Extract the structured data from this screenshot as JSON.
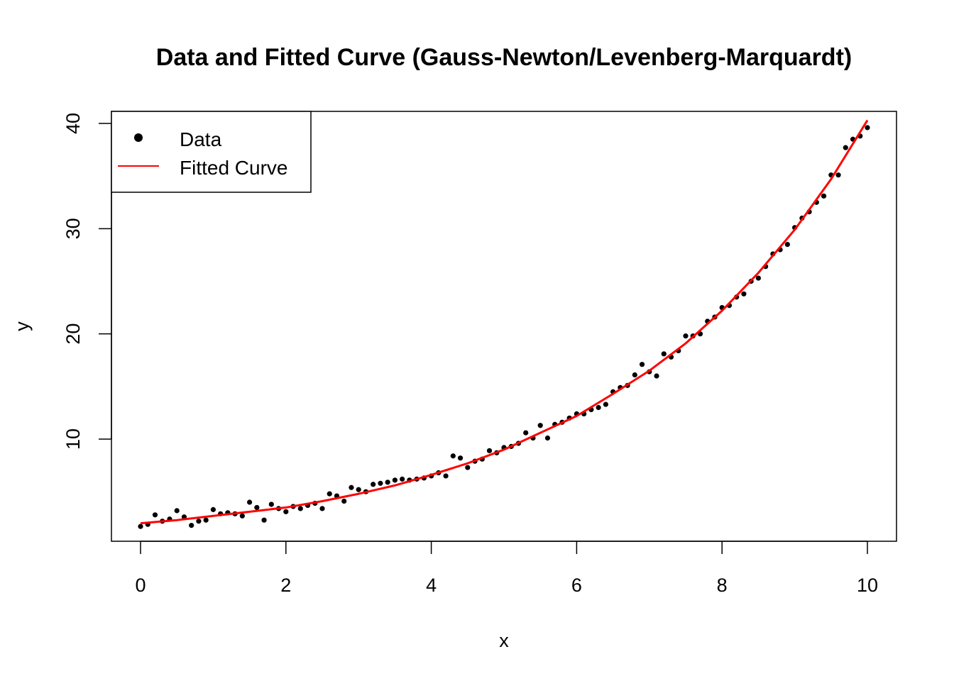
{
  "chart_data": {
    "type": "scatter",
    "title": "Data and Fitted Curve (Gauss-Newton/Levenberg-Marquardt)",
    "xlabel": "x",
    "ylabel": "y",
    "xlim": [
      0,
      10
    ],
    "ylim": [
      0,
      40
    ],
    "x_ticks": [
      "0",
      "2",
      "4",
      "6",
      "8",
      "10"
    ],
    "y_ticks": [
      "10",
      "20",
      "30",
      "40"
    ],
    "grid": false,
    "legend_position": "top-left",
    "legend": [
      {
        "label": "Data",
        "marker": "point",
        "color": "#000000"
      },
      {
        "label": "Fitted Curve",
        "marker": "line",
        "color": "#ff0000"
      }
    ],
    "series": [
      {
        "name": "Data",
        "kind": "points",
        "color": "#000000",
        "x": [
          0,
          0.1,
          0.2,
          0.3,
          0.4,
          0.5,
          0.6,
          0.7,
          0.8,
          0.9,
          1.0,
          1.1,
          1.2,
          1.3,
          1.4,
          1.5,
          1.6,
          1.7,
          1.8,
          1.9,
          2.0,
          2.1,
          2.2,
          2.3,
          2.4,
          2.5,
          2.6,
          2.7,
          2.8,
          2.9,
          3.0,
          3.1,
          3.2,
          3.3,
          3.4,
          3.5,
          3.6,
          3.7,
          3.8,
          3.9,
          4.0,
          4.1,
          4.2,
          4.3,
          4.4,
          4.5,
          4.6,
          4.7,
          4.8,
          4.9,
          5.0,
          5.1,
          5.2,
          5.3,
          5.4,
          5.5,
          5.6,
          5.7,
          5.8,
          5.9,
          6.0,
          6.1,
          6.2,
          6.3,
          6.4,
          6.5,
          6.6,
          6.7,
          6.8,
          6.9,
          7.0,
          7.1,
          7.2,
          7.3,
          7.4,
          7.5,
          7.6,
          7.7,
          7.8,
          7.9,
          8.0,
          8.1,
          8.2,
          8.3,
          8.4,
          8.5,
          8.6,
          8.7,
          8.8,
          8.9,
          9.0,
          9.1,
          9.2,
          9.3,
          9.4,
          9.5,
          9.6,
          9.7,
          9.8,
          9.9,
          10.0
        ],
        "y": [
          1.7,
          1.9,
          2.8,
          2.2,
          2.4,
          3.2,
          2.6,
          1.8,
          2.2,
          2.3,
          3.3,
          2.9,
          3.0,
          2.9,
          2.7,
          4.0,
          3.5,
          2.3,
          3.8,
          3.4,
          3.1,
          3.6,
          3.4,
          3.7,
          3.9,
          3.4,
          4.8,
          4.6,
          4.1,
          5.4,
          5.2,
          5.0,
          5.7,
          5.8,
          5.9,
          6.1,
          6.2,
          6.1,
          6.2,
          6.3,
          6.5,
          6.8,
          6.5,
          8.4,
          8.2,
          7.3,
          7.9,
          8.1,
          8.9,
          8.7,
          9.2,
          9.3,
          9.6,
          10.6,
          10.1,
          11.3,
          10.1,
          11.4,
          11.6,
          12.0,
          12.4,
          12.4,
          12.8,
          13.0,
          13.3,
          14.5,
          14.9,
          15.1,
          16.1,
          17.1,
          16.4,
          16.0,
          18.1,
          17.8,
          18.4,
          19.8,
          19.8,
          20.0,
          21.2,
          21.6,
          22.5,
          22.7,
          23.5,
          23.8,
          25.0,
          25.3,
          26.4,
          27.6,
          28.0,
          28.5,
          30.1,
          31.0,
          31.6,
          32.5,
          33.1,
          35.1,
          35.1,
          37.7,
          38.5,
          38.8,
          39.6
        ]
      },
      {
        "name": "Fitted Curve",
        "kind": "line",
        "color": "#ff0000",
        "x": [
          0,
          0.5,
          1,
          1.5,
          2,
          2.5,
          3,
          3.5,
          4,
          4.5,
          5,
          5.5,
          6,
          6.5,
          7,
          7.5,
          8,
          8.5,
          9,
          9.5,
          10
        ],
        "y": [
          2.0,
          2.3,
          2.7,
          3.1,
          3.5,
          4.1,
          4.8,
          5.6,
          6.6,
          7.7,
          9.0,
          10.6,
          12.2,
          14.3,
          16.5,
          19.1,
          22.2,
          25.8,
          29.9,
          34.7,
          40.3
        ]
      }
    ]
  }
}
